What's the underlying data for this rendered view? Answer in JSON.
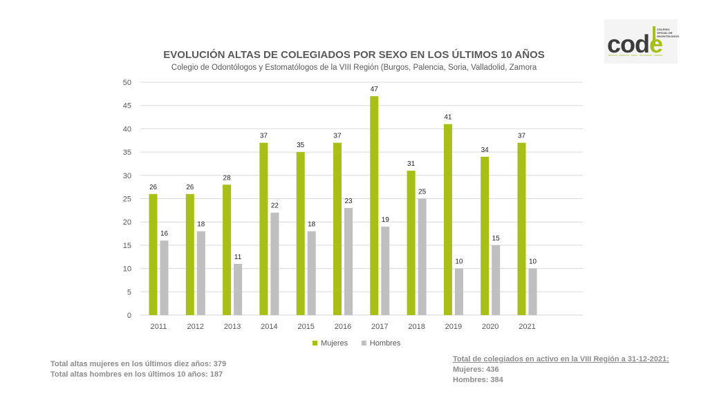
{
  "chart_data": {
    "type": "bar",
    "title": "EVOLUCIÓN ALTAS DE COLEGIADOS POR SEXO EN LOS ÚLTIMOS 10 AÑOS",
    "subtitle": "Colegio de Odontólogos y Estomatólogos de la VIII Región (Burgos, Palencia, Soria, Valladolid, Zamora",
    "categories": [
      "2011",
      "2012",
      "2013",
      "2014",
      "2015",
      "2016",
      "2017",
      "2018",
      "2019",
      "2020",
      "2021"
    ],
    "series": [
      {
        "name": "Mujeres",
        "color": "#a7bf17",
        "values": [
          26,
          26,
          28,
          37,
          35,
          37,
          47,
          31,
          41,
          34,
          37
        ]
      },
      {
        "name": "Hombres",
        "color": "#bfbfbf",
        "values": [
          16,
          18,
          11,
          22,
          18,
          23,
          19,
          25,
          10,
          15,
          10
        ]
      }
    ],
    "ylim": [
      0,
      50
    ],
    "yticks": [
      0,
      5,
      10,
      15,
      20,
      25,
      30,
      35,
      40,
      45,
      50
    ],
    "grid": true,
    "legend": "bottom-center"
  },
  "logo": {
    "word_c": "co",
    "word_d": "d",
    "word_e": "e",
    "caption": "COLEGIO OFICIAL DE ODONTÓLOGOS",
    "cities": "BURGOS · PALENCIA · SORIA · VALLADOLID · ZAMORA"
  },
  "footer": {
    "women_total": "Total altas mujeres en los últimos diez años: 379",
    "men_total": "Total altas hombres en los últimos 10 años: 187",
    "active_heading": "Total de colegiados en activo en la VIII Región a 31-12-2021:",
    "active_women": "Mujeres: 436",
    "active_men": "Hombres: 384"
  }
}
